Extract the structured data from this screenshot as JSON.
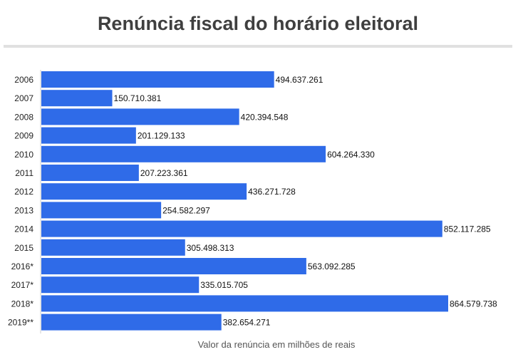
{
  "title": "Renúncia fiscal do horário eleitoral",
  "chart_data": {
    "type": "bar",
    "orientation": "horizontal",
    "title": "Renúncia fiscal do horário eleitoral",
    "xlabel": "Valor da renúncia em milhões de reais",
    "ylabel": "",
    "categories": [
      "2006",
      "2007",
      "2008",
      "2009",
      "2010",
      "2011",
      "2012",
      "2013",
      "2014",
      "2015",
      "2016*",
      "2017*",
      "2018*",
      "2019**"
    ],
    "values": [
      494637261,
      150710381,
      420394548,
      201129133,
      604264330,
      207223361,
      436271728,
      254582297,
      852117285,
      305498313,
      563092285,
      335015705,
      864579738,
      382654271
    ],
    "value_labels": [
      "494.637.261",
      "150.710.381",
      "420.394.548",
      "201.129.133",
      "604.264.330",
      "207.223.361",
      "436.271.728",
      "254.582.297",
      "852.117.285",
      "305.498.313",
      "563.092.285",
      "335.015.705",
      "864.579.738",
      "382.654.271"
    ],
    "xlim": [
      0,
      864579738
    ],
    "grid": false,
    "legend": "none",
    "bar_color": "#2f6be8"
  }
}
